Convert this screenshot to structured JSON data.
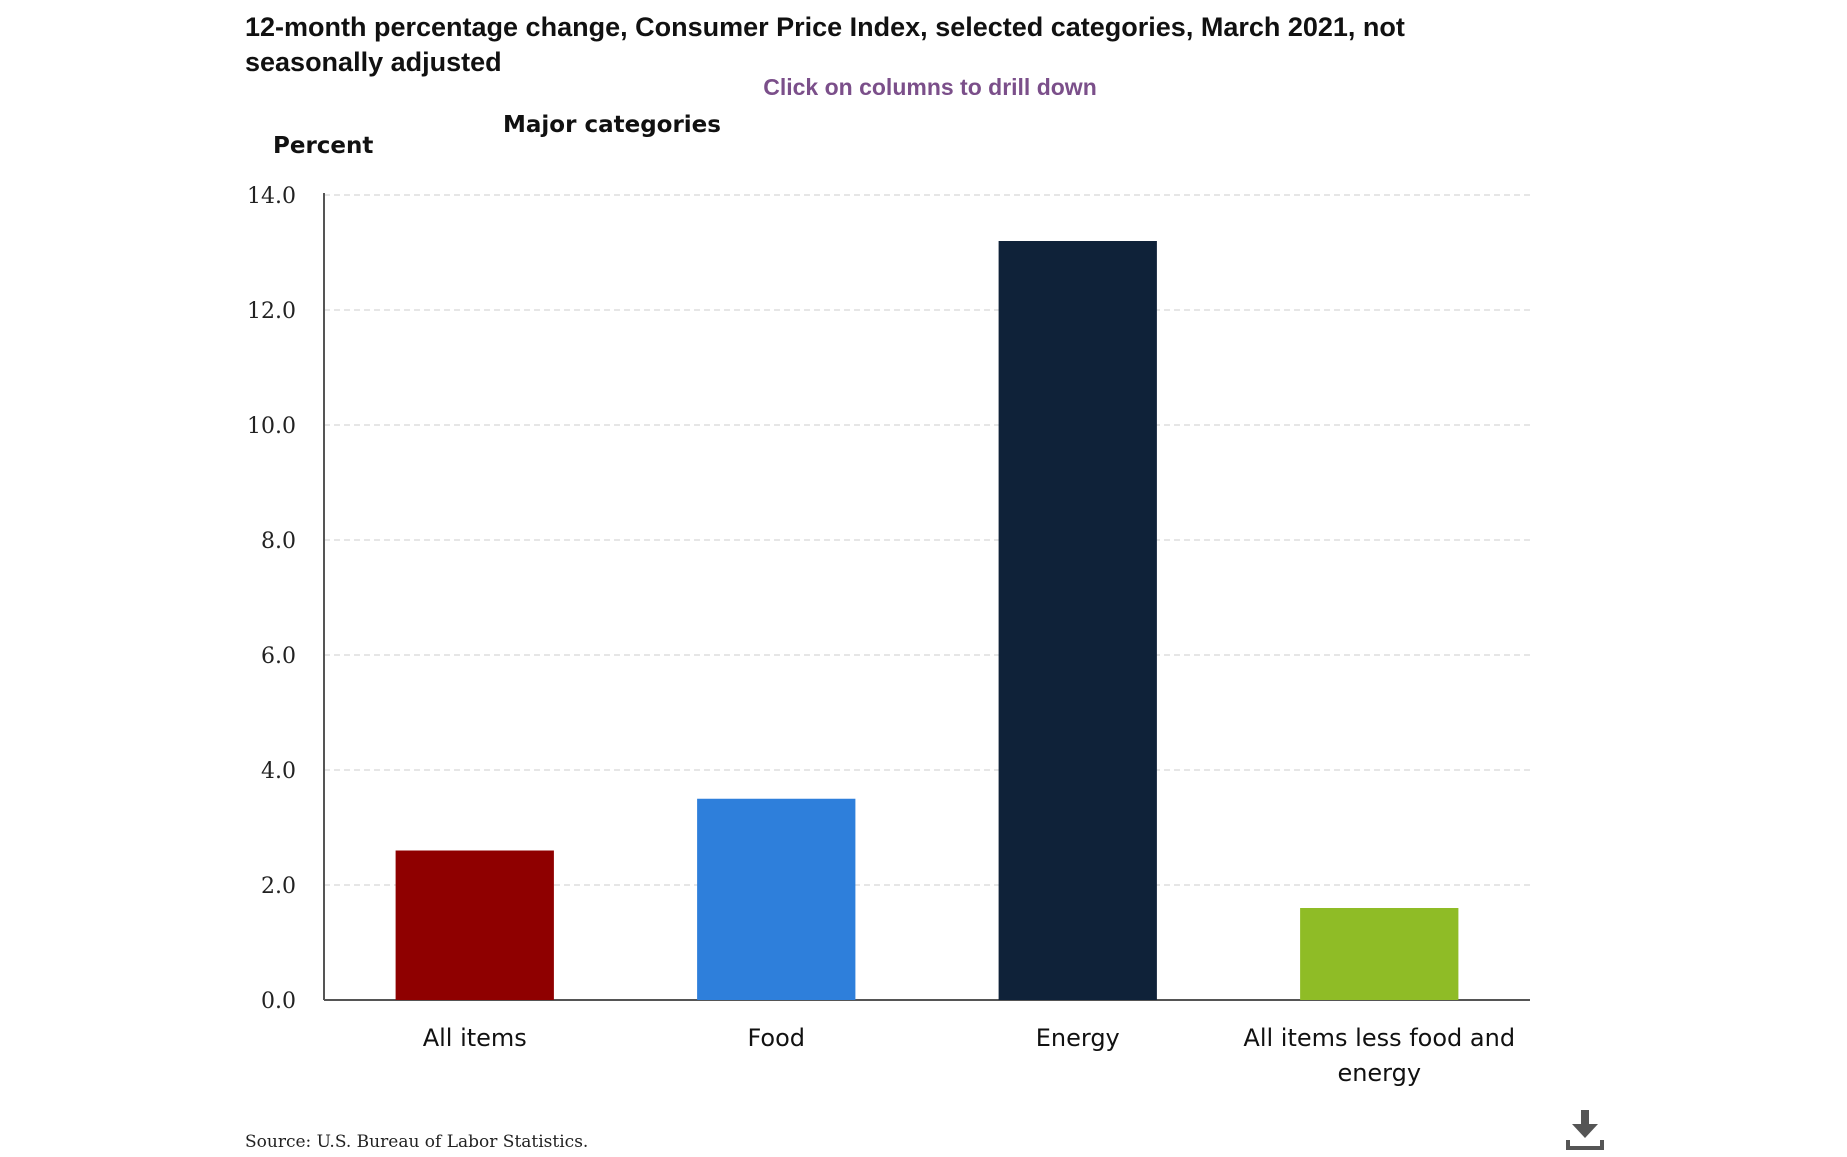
{
  "chart_title": "12-month percentage change, Consumer Price Index, selected categories, March 2021, not seasonally adjusted",
  "drill_hint": "Click on columns to drill down",
  "subtitle": "Major categories",
  "y_unit": "Percent",
  "source": "Source: U.S. Bureau of Labor Statistics.",
  "download_icon": "download-icon",
  "colors": {
    "hint": "#7b4f8a",
    "axis": "#555555",
    "grid": "#cccccc"
  },
  "chart_data": {
    "type": "bar",
    "title": "12-month percentage change, Consumer Price Index, selected categories, March 2021, not seasonally adjusted",
    "subtitle": "Major categories",
    "ylabel": "Percent",
    "xlabel": "",
    "ylim": [
      0,
      14
    ],
    "yticks": [
      "0.0",
      "2.0",
      "4.0",
      "6.0",
      "8.0",
      "10.0",
      "12.0",
      "14.0"
    ],
    "grid": true,
    "categories": [
      [
        "All items"
      ],
      [
        "Food"
      ],
      [
        "Energy"
      ],
      [
        "All items less food and",
        "energy"
      ]
    ],
    "values": [
      2.6,
      3.5,
      13.2,
      1.6
    ],
    "bar_colors": [
      "#8f0000",
      "#2e7fdb",
      "#0f2239",
      "#8fbc26"
    ]
  }
}
